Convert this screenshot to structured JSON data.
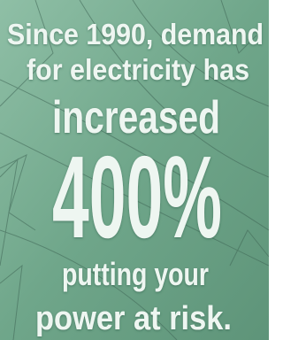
{
  "text_lines": [
    "Since 1990, demand",
    "for electricity has",
    "increased",
    "400%",
    "putting your",
    "power at risk."
  ]
}
